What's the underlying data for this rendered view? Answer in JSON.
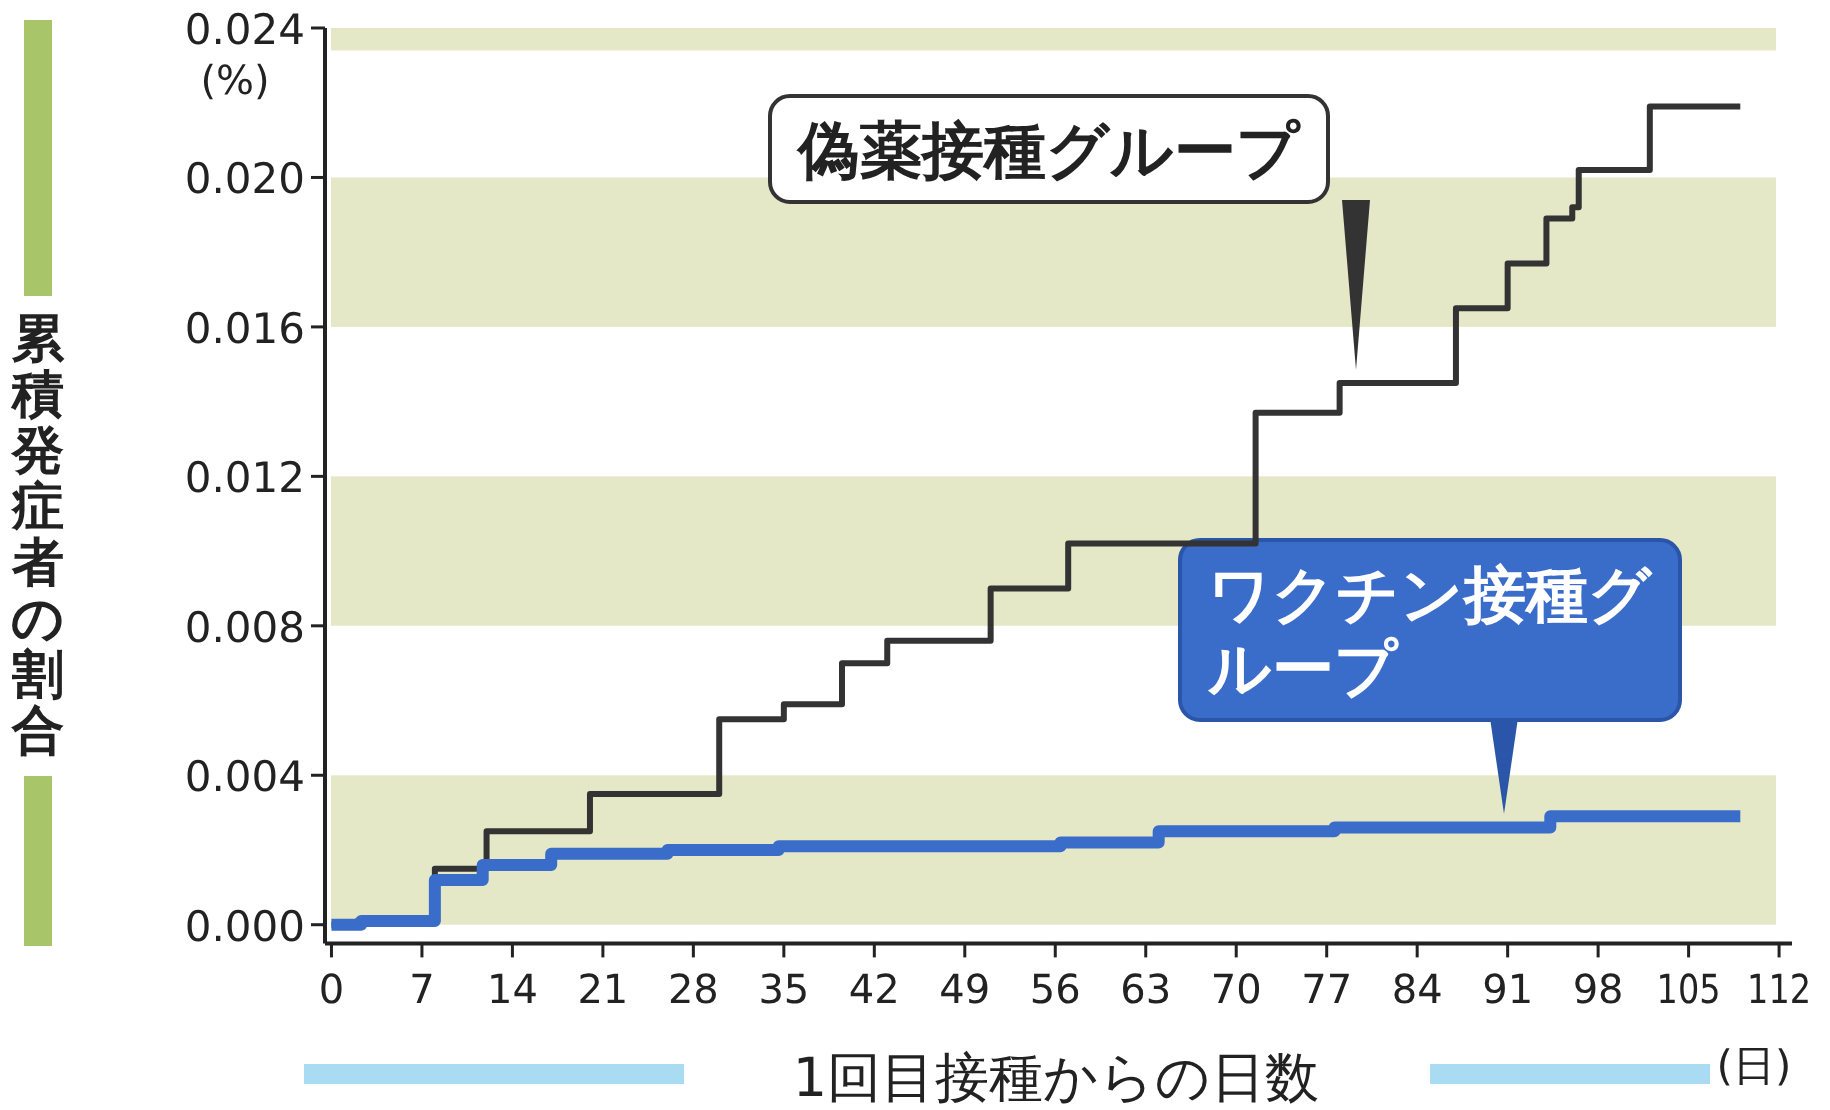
{
  "chart_data": {
    "type": "step",
    "xlabel": "1回目接種からの日数",
    "ylabel": "累積発症者の割合",
    "annotations": [
      "(%)",
      "(日)"
    ],
    "xlim": [
      -0.5,
      113
    ],
    "ylim": [
      -0.0005,
      0.024
    ],
    "xticks": [
      0,
      7,
      14,
      21,
      28,
      35,
      42,
      49,
      56,
      63,
      70,
      77,
      84,
      91,
      98,
      105,
      112
    ],
    "yticks": [
      {
        "value": 0,
        "label": "0.000"
      },
      {
        "value": 0.004,
        "label": "0.004"
      },
      {
        "value": 0.008,
        "label": "0.008"
      },
      {
        "value": 0.012,
        "label": "0.012"
      },
      {
        "value": 0.016,
        "label": "0.016"
      },
      {
        "value": 0.02,
        "label": "0.020"
      },
      {
        "value": 0.024,
        "label": "0.024"
      }
    ],
    "bands": [
      {
        "axis": "y",
        "from": 0,
        "to": 0.004,
        "color": "#e5e8c6"
      },
      {
        "axis": "y",
        "from": 0.008,
        "to": 0.012,
        "color": "#e5e8c6"
      },
      {
        "axis": "y",
        "from": 0.016,
        "to": 0.02,
        "color": "#e5e8c6"
      },
      {
        "axis": "y",
        "from": 0.0234,
        "to": 0.024,
        "color": "#e5e8c6"
      }
    ],
    "legend": false,
    "marker": "none",
    "line_style": "solid",
    "series": [
      {
        "name": "偽薬接種グループ",
        "color": "#333333",
        "x": [
          0,
          2,
          8,
          12,
          20,
          30,
          35,
          39.5,
          43,
          51,
          57,
          71.5,
          78,
          87,
          91,
          94,
          96,
          96.5,
          102,
          109
        ],
        "values": [
          0,
          0.0001,
          0.0015,
          0.0025,
          0.0035,
          0.0055,
          0.0059,
          0.007,
          0.0076,
          0.009,
          0.0102,
          0.0137,
          0.0145,
          0.0165,
          0.0177,
          0.0189,
          0.0192,
          0.0202,
          0.0219,
          0.0219
        ]
      },
      {
        "name": "ワクチン接種グループ",
        "color": "#3a6cc9",
        "x": [
          0,
          2.3,
          8,
          11.7,
          17,
          26,
          34.6,
          56.4,
          64,
          77.6,
          94.3,
          109
        ],
        "values": [
          0,
          0.0001,
          0.0012,
          0.0016,
          0.0019,
          0.002,
          0.0021,
          0.0022,
          0.0025,
          0.0026,
          0.0029,
          0.0029
        ]
      }
    ]
  }
}
